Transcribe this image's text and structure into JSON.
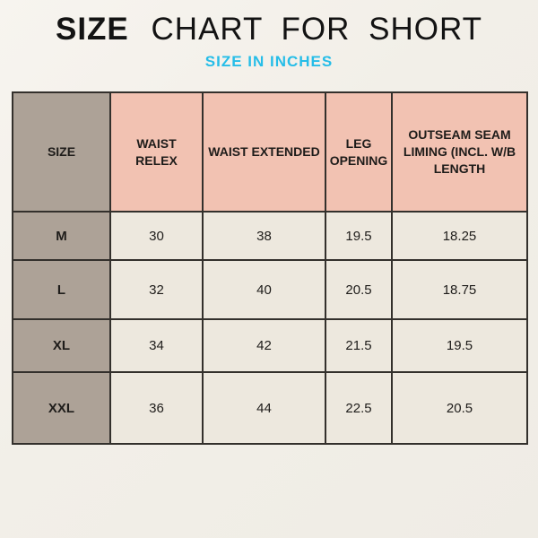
{
  "page": {
    "title_bold": "SIZE",
    "title_rest": "CHART FOR SHORT",
    "subtitle": "SIZE IN INCHES"
  },
  "colors": {
    "background": "#F2EFE8",
    "header_pink": "#F2C2B2",
    "size_column_taupe": "#ADA297",
    "cell_cream": "#EDE8DE",
    "border": "#33302C",
    "subtitle_cyan": "#26BDE8",
    "title_black": "#131313"
  },
  "chart_data": {
    "type": "table",
    "title": "SIZE CHART FOR SHORT",
    "subtitle": "SIZE IN INCHES",
    "unit": "inches",
    "columns": [
      "SIZE",
      "WAIST RELEX",
      "WAIST EXTENDED",
      "LEG OPENING",
      "OUTSEAM SEAM LIMING (INCL. W/B LENGTH"
    ],
    "rows": [
      {
        "size": "M",
        "values": [
          "30",
          "38",
          "19.5",
          "18.25"
        ]
      },
      {
        "size": "L",
        "values": [
          "32",
          "40",
          "20.5",
          "18.75"
        ]
      },
      {
        "size": "XL",
        "values": [
          "34",
          "42",
          "21.5",
          "19.5"
        ]
      },
      {
        "size": "XXL",
        "values": [
          "36",
          "44",
          "22.5",
          "20.5"
        ]
      }
    ]
  }
}
